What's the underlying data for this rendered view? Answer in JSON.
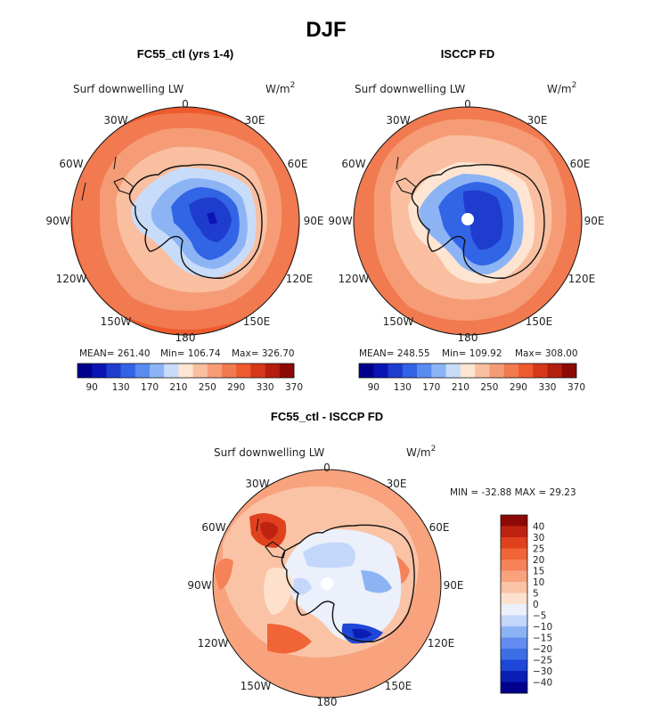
{
  "page": {
    "title": "DJF"
  },
  "colors": {
    "bg": "#ffffff",
    "coast": "#111111",
    "cbar_main": [
      "#00008c",
      "#0a14b4",
      "#1e3ccd",
      "#3264e6",
      "#5a8cf0",
      "#8cb4f5",
      "#c8dcfa",
      "#fde5d2",
      "#f9bfa0",
      "#f59c76",
      "#f27a50",
      "#ee5a2d",
      "#d7371a",
      "#b41e0f",
      "#8c0a05"
    ],
    "cbar_diff": [
      "#00008c",
      "#0a1eb4",
      "#1e46d7",
      "#3c6ee6",
      "#648cf0",
      "#8cb4f5",
      "#c3d7fa",
      "#ebf0fa",
      "#fde1cd",
      "#fac3a5",
      "#f8a27e",
      "#f58259",
      "#f06437",
      "#e1411e",
      "#be2312",
      "#8c0a05"
    ]
  },
  "chart_data": [
    {
      "type": "heatmap",
      "projection": "south-polar-stereographic",
      "title": "FC55_ctl (yrs 1-4)",
      "variable": "Surf downwelling LW",
      "units": "W/m",
      "units_superscript": "2",
      "lon_labels": [
        "0",
        "30E",
        "60E",
        "90E",
        "120E",
        "150E",
        "180",
        "150W",
        "120W",
        "90W",
        "60W",
        "30W"
      ],
      "stats": {
        "mean": "MEAN= 261.40",
        "min": "Min= 106.74",
        "max": "Max= 326.70"
      },
      "colorbar_ticks": [
        "90",
        "130",
        "170",
        "210",
        "250",
        "290",
        "330",
        "370"
      ],
      "levels": [
        70,
        90,
        110,
        130,
        150,
        170,
        190,
        210,
        230,
        250,
        270,
        290,
        310,
        330,
        350,
        370
      ],
      "zones": [
        {
          "region": "outer ocean",
          "value": 320
        },
        {
          "region": "mid ocean",
          "value": 300
        },
        {
          "region": "sea-ice margin",
          "value": 275
        },
        {
          "region": "coastal",
          "value": 245
        },
        {
          "region": "ice-sheet edge",
          "value": 205
        },
        {
          "region": "plateau",
          "value": 160
        },
        {
          "region": "high plateau",
          "value": 125
        }
      ]
    },
    {
      "type": "heatmap",
      "projection": "south-polar-stereographic",
      "title": "ISCCP FD",
      "variable": "Surf downwelling LW",
      "units": "W/m",
      "units_superscript": "2",
      "lon_labels": [
        "0",
        "30E",
        "60E",
        "90E",
        "120E",
        "150E",
        "180",
        "150W",
        "120W",
        "90W",
        "60W",
        "30W"
      ],
      "stats": {
        "mean": "MEAN= 248.55",
        "min": "Min= 109.92",
        "max": "Max= 308.00"
      },
      "colorbar_ticks": [
        "90",
        "130",
        "170",
        "210",
        "250",
        "290",
        "330",
        "370"
      ],
      "levels": [
        70,
        90,
        110,
        130,
        150,
        170,
        190,
        210,
        230,
        250,
        270,
        290,
        310,
        330,
        350,
        370
      ],
      "zones": [
        {
          "region": "outer ocean",
          "value": 310
        },
        {
          "region": "mid ocean",
          "value": 292
        },
        {
          "region": "sea-ice margin",
          "value": 270
        },
        {
          "region": "coastal",
          "value": 250
        },
        {
          "region": "ice-sheet edge",
          "value": 200
        },
        {
          "region": "plateau",
          "value": 160
        },
        {
          "region": "high plateau",
          "value": 130
        }
      ]
    },
    {
      "type": "heatmap",
      "projection": "south-polar-stereographic",
      "title": "FC55_ctl - ISCCP FD",
      "variable": "Surf downwelling LW",
      "units": "W/m",
      "units_superscript": "2",
      "lon_labels": [
        "0",
        "30E",
        "60E",
        "90E",
        "120E",
        "150E",
        "180",
        "150W",
        "120W",
        "90W",
        "60W",
        "30W"
      ],
      "stats": {
        "minmax": "MIN = -32.88 MAX =   29.23"
      },
      "colorbar_ticks": [
        "40",
        "30",
        "25",
        "20",
        "15",
        "10",
        "5",
        "0",
        "−5",
        "−10",
        "−15",
        "−20",
        "−25",
        "−30",
        "−40"
      ],
      "levels": [
        -40,
        -30,
        -25,
        -20,
        -15,
        -10,
        -5,
        0,
        5,
        10,
        15,
        20,
        25,
        30,
        40
      ],
      "zones": [
        {
          "region": "ocean",
          "value": 15
        },
        {
          "region": "Weddell sector",
          "value": 25
        },
        {
          "region": "coastal",
          "value": 5
        },
        {
          "region": "interior",
          "value": -5
        },
        {
          "region": "Ross shelf",
          "value": -30
        }
      ]
    }
  ]
}
